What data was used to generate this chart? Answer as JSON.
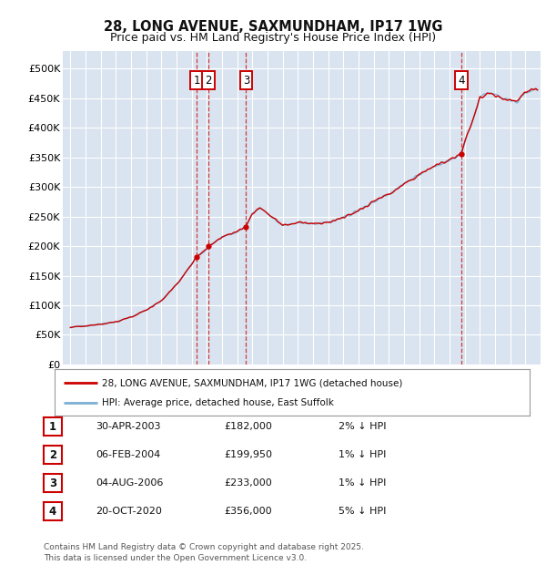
{
  "title1": "28, LONG AVENUE, SAXMUNDHAM, IP17 1WG",
  "title2": "Price paid vs. HM Land Registry's House Price Index (HPI)",
  "ylabel_ticks": [
    "£0",
    "£50K",
    "£100K",
    "£150K",
    "£200K",
    "£250K",
    "£300K",
    "£350K",
    "£400K",
    "£450K",
    "£500K"
  ],
  "ytick_vals": [
    0,
    50000,
    100000,
    150000,
    200000,
    250000,
    300000,
    350000,
    400000,
    450000,
    500000
  ],
  "ylim": [
    0,
    530000
  ],
  "xlim_start": 1994.5,
  "xlim_end": 2026.0,
  "bg_color": "#d9e4f0",
  "grid_color": "#ffffff",
  "line_color_red": "#cc0000",
  "line_color_blue": "#7bafd4",
  "sale_points": [
    {
      "num": 1,
      "year": 2003.33,
      "price": 182000,
      "date": "30-APR-2003",
      "pct": "2%",
      "dir": "↓"
    },
    {
      "num": 2,
      "year": 2004.09,
      "price": 199950,
      "date": "06-FEB-2004",
      "pct": "1%",
      "dir": "↓"
    },
    {
      "num": 3,
      "year": 2006.59,
      "price": 233000,
      "date": "04-AUG-2006",
      "pct": "1%",
      "dir": "↓"
    },
    {
      "num": 4,
      "year": 2020.8,
      "price": 356000,
      "date": "20-OCT-2020",
      "pct": "5%",
      "dir": "↓"
    }
  ],
  "legend_label_red": "28, LONG AVENUE, SAXMUNDHAM, IP17 1WG (detached house)",
  "legend_label_blue": "HPI: Average price, detached house, East Suffolk",
  "footer": "Contains HM Land Registry data © Crown copyright and database right 2025.\nThis data is licensed under the Open Government Licence v3.0.",
  "table_rows": [
    [
      "1",
      "30-APR-2003",
      "£182,000",
      "2% ↓ HPI"
    ],
    [
      "2",
      "06-FEB-2004",
      "£199,950",
      "1% ↓ HPI"
    ],
    [
      "3",
      "04-AUG-2006",
      "£233,000",
      "1% ↓ HPI"
    ],
    [
      "4",
      "20-OCT-2020",
      "£356,000",
      "5% ↓ HPI"
    ]
  ],
  "hpi_anchors": [
    [
      1995.0,
      63000
    ],
    [
      1996.0,
      65000
    ],
    [
      1997.0,
      68000
    ],
    [
      1998.0,
      72000
    ],
    [
      1999.0,
      80000
    ],
    [
      2000.0,
      92000
    ],
    [
      2001.0,
      108000
    ],
    [
      2002.0,
      135000
    ],
    [
      2003.0,
      170000
    ],
    [
      2003.33,
      182000
    ],
    [
      2004.0,
      195000
    ],
    [
      2004.09,
      199950
    ],
    [
      2005.0,
      215000
    ],
    [
      2006.0,
      225000
    ],
    [
      2006.59,
      233000
    ],
    [
      2007.0,
      255000
    ],
    [
      2007.5,
      265000
    ],
    [
      2008.0,
      255000
    ],
    [
      2009.0,
      235000
    ],
    [
      2010.0,
      240000
    ],
    [
      2011.0,
      238000
    ],
    [
      2012.0,
      240000
    ],
    [
      2013.0,
      248000
    ],
    [
      2014.0,
      260000
    ],
    [
      2015.0,
      275000
    ],
    [
      2016.0,
      288000
    ],
    [
      2017.0,
      305000
    ],
    [
      2018.0,
      320000
    ],
    [
      2019.0,
      335000
    ],
    [
      2020.0,
      345000
    ],
    [
      2020.8,
      356000
    ],
    [
      2021.0,
      375000
    ],
    [
      2021.5,
      410000
    ],
    [
      2022.0,
      450000
    ],
    [
      2022.5,
      460000
    ],
    [
      2023.0,
      455000
    ],
    [
      2023.5,
      450000
    ],
    [
      2024.0,
      445000
    ],
    [
      2024.5,
      448000
    ],
    [
      2025.0,
      460000
    ],
    [
      2025.5,
      465000
    ]
  ]
}
